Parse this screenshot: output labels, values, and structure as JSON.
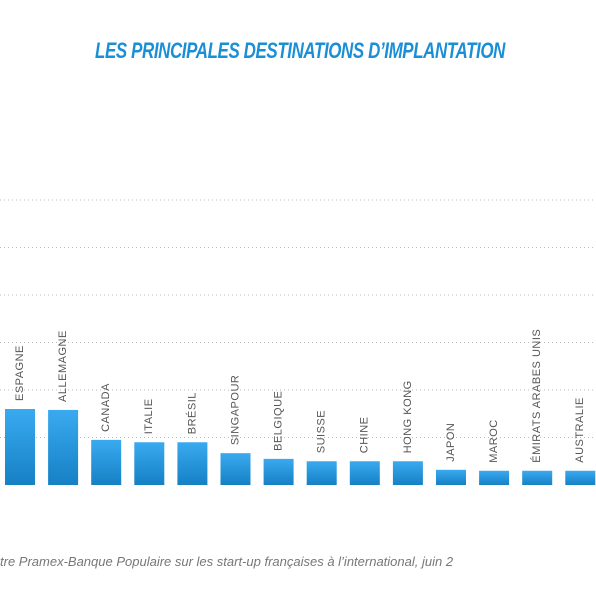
{
  "chart_data": {
    "type": "bar",
    "title": "LES PRINCIPALES DESTINATIONS D’IMPLANTATION",
    "categories": [
      "ESPAGNE",
      "ALLEMAGNE",
      "CANADA",
      "ITALIE",
      "BRÉSIL",
      "SINGAPOUR",
      "BELGIQUE",
      "SUISSE",
      "CHINE",
      "HONG KONG",
      "JAPON",
      "MAROC",
      "ÉMIRATS ARABES UNIS",
      "AUSTRALIE"
    ],
    "values": [
      1.6,
      1.58,
      0.95,
      0.9,
      0.9,
      0.67,
      0.55,
      0.5,
      0.5,
      0.5,
      0.32,
      0.3,
      0.3,
      0.3
    ],
    "color": "#2196dc",
    "ylim": [
      0,
      6
    ],
    "ygrid": [
      1,
      2,
      3,
      4,
      5,
      6
    ],
    "source": "tre Pramex-Banque Populaire sur les start-up françaises à l’international, juin 2"
  }
}
